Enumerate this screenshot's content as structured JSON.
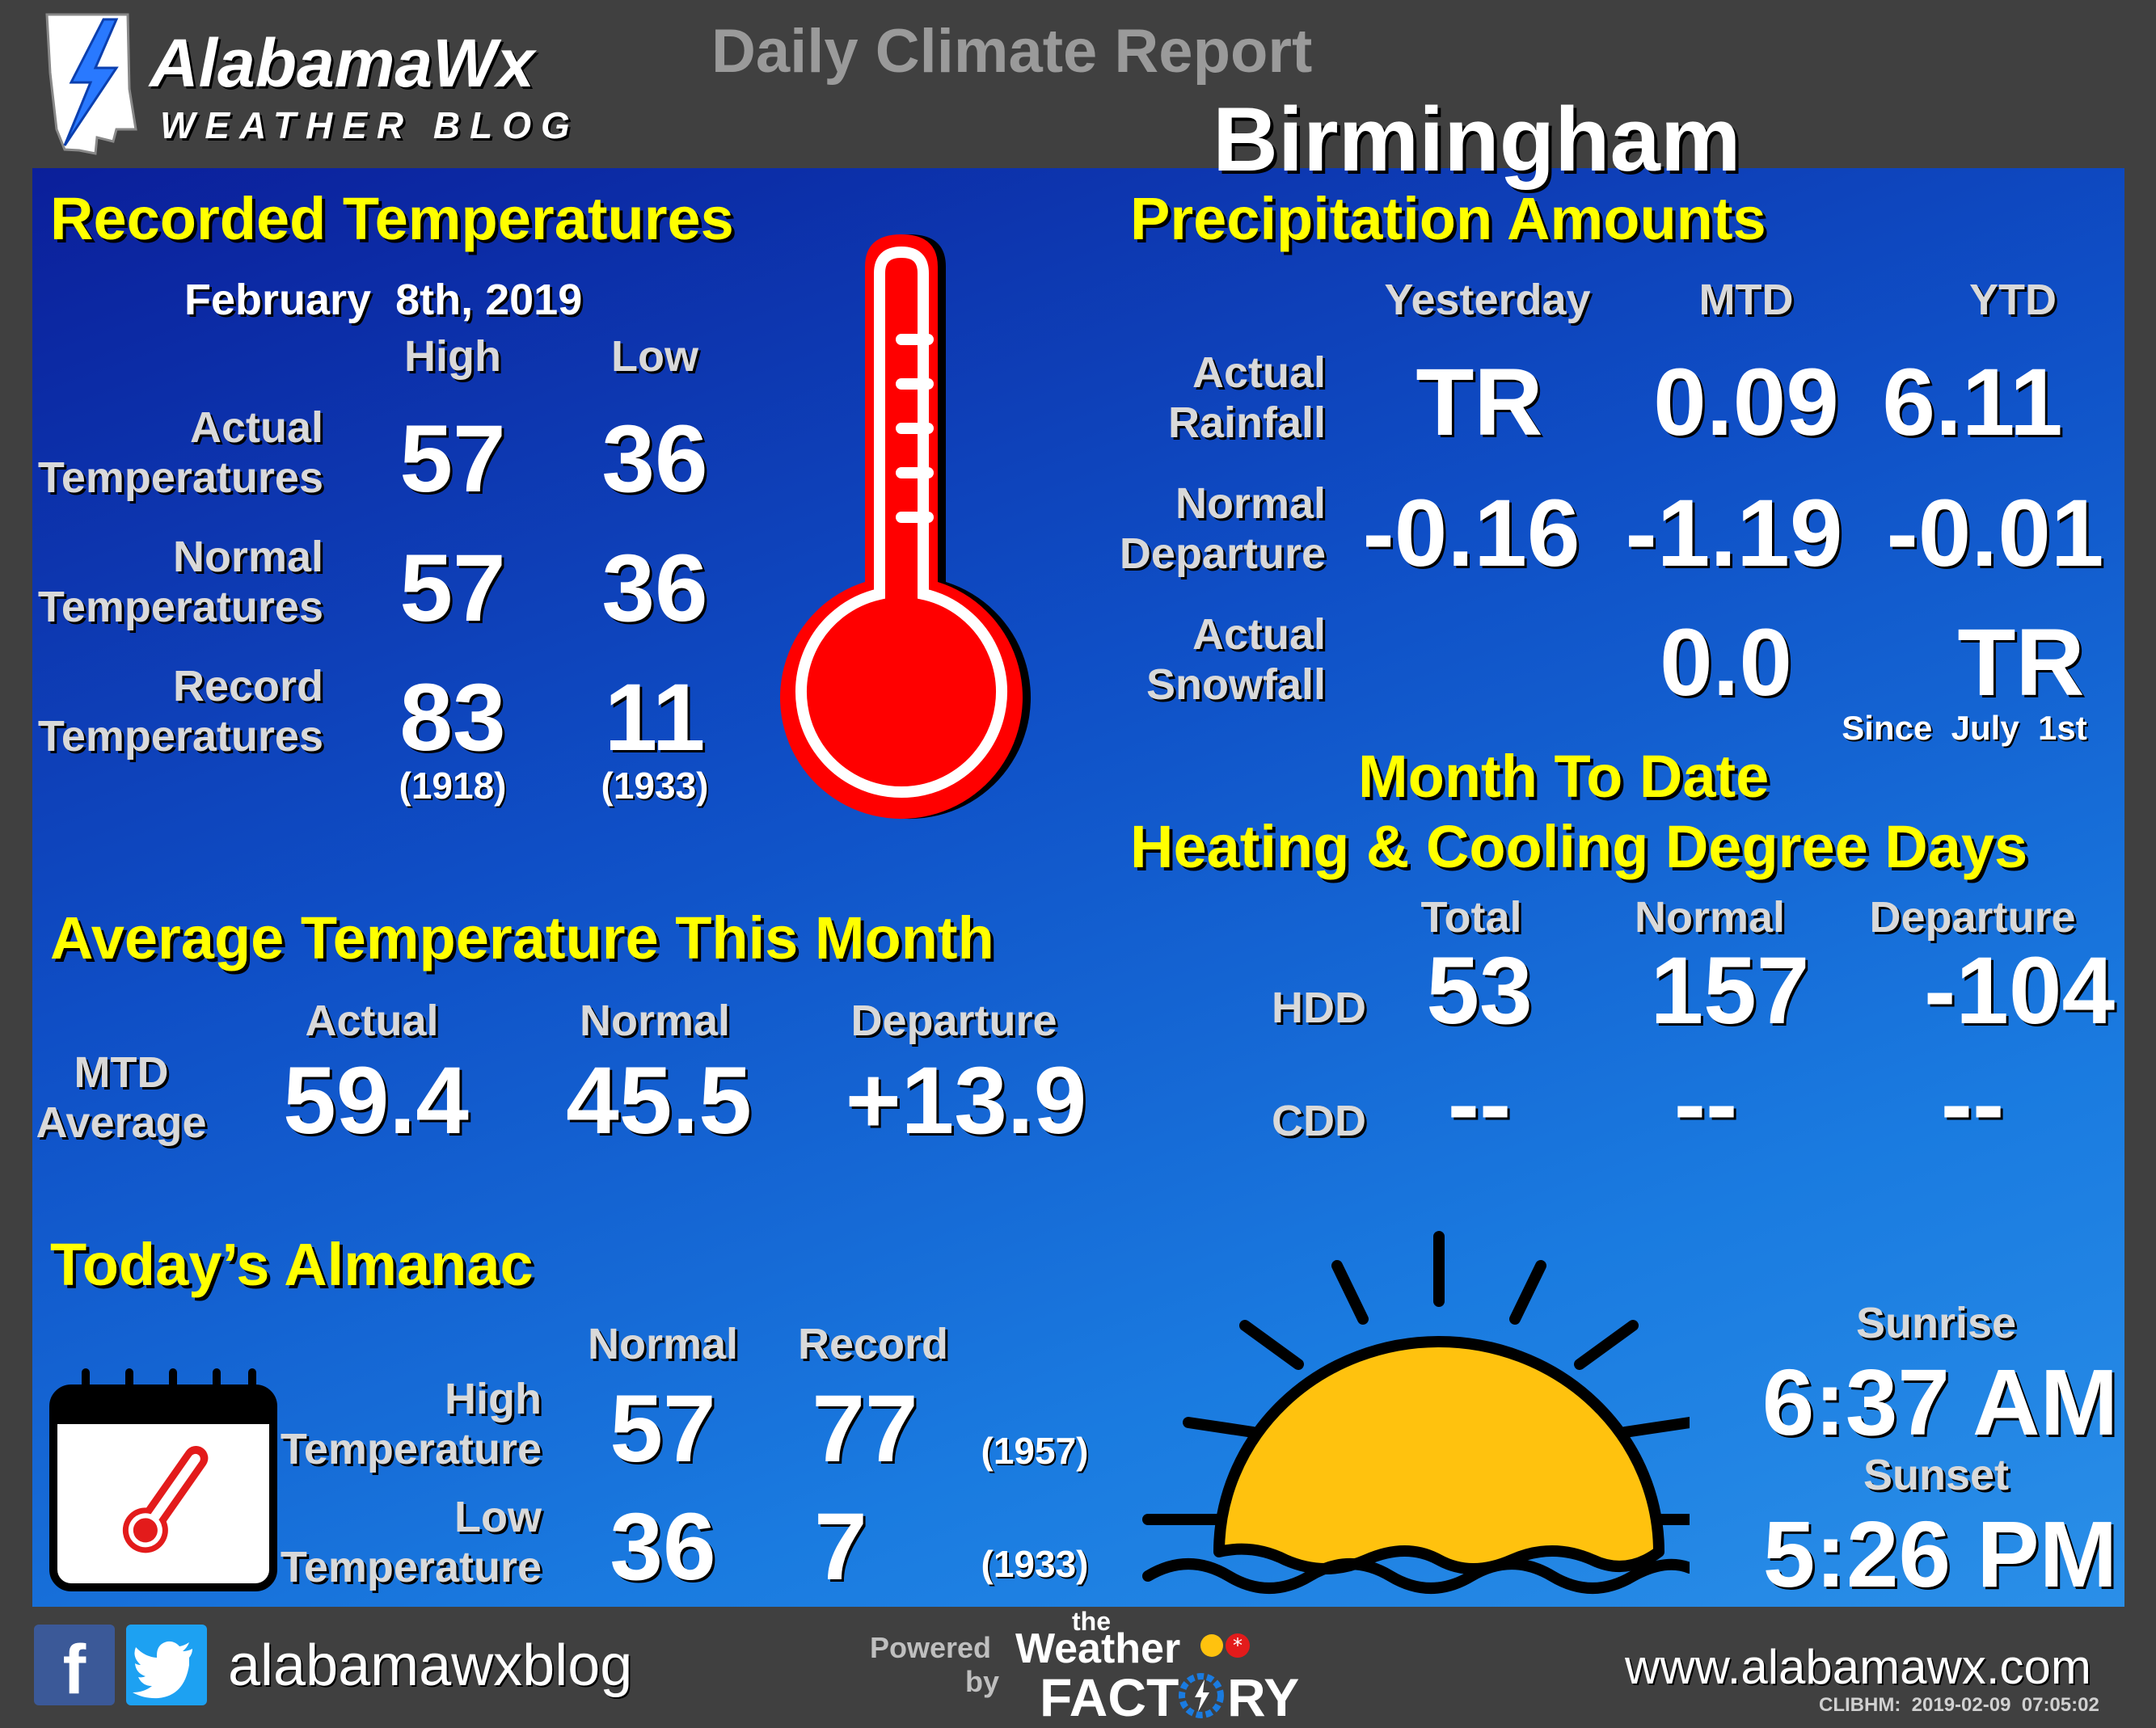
{
  "header": {
    "logo_name": "AlabamaWx",
    "logo_sub": "WEATHER BLOG",
    "report_title": "Daily Climate Report",
    "city": "Birmingham"
  },
  "recorded": {
    "title": "Recorded Temperatures",
    "date": "February  8th, 2019",
    "col_high": "High",
    "col_low": "Low",
    "rows": [
      {
        "label1": "Actual",
        "label2": "Temperatures",
        "high": "57",
        "low": "36"
      },
      {
        "label1": "Normal",
        "label2": "Temperatures",
        "high": "57",
        "low": "36"
      },
      {
        "label1": "Record",
        "label2": "Temperatures",
        "high": "83",
        "low": "11",
        "high_year": "(1918)",
        "low_year": "(1933)"
      }
    ]
  },
  "precip": {
    "title": "Precipitation Amounts",
    "cols": [
      "Yesterday",
      "MTD",
      "YTD"
    ],
    "rainfall": {
      "label1": "Actual",
      "label2": "Rainfall",
      "values": [
        "TR",
        "0.09",
        "6.11"
      ]
    },
    "departure": {
      "label1": "Normal",
      "label2": "Departure",
      "values": [
        "-0.16",
        "-1.19",
        "-0.01"
      ]
    },
    "snowfall": {
      "label1": "Actual",
      "label2": "Snowfall",
      "mtd": "0.0",
      "ytd": "TR",
      "note": "Since  July  1st"
    }
  },
  "degree_days": {
    "title1": "Month To Date",
    "title2": "Heating & Cooling Degree Days",
    "cols": [
      "Total",
      "Normal",
      "Departure"
    ],
    "hdd": {
      "label": "HDD",
      "values": [
        "53",
        "157",
        "-104"
      ]
    },
    "cdd": {
      "label": "CDD",
      "values": [
        "--",
        "--",
        "--"
      ]
    }
  },
  "avg_temp": {
    "title": "Average Temperature This Month",
    "cols": [
      "Actual",
      "Normal",
      "Departure"
    ],
    "label1": "MTD",
    "label2": "Average",
    "values": [
      "59.4",
      "45.5",
      "+13.9"
    ]
  },
  "almanac": {
    "title": "Today’s Almanac",
    "cols": [
      "Normal",
      "Record"
    ],
    "high": {
      "label1": "High",
      "label2": "Temperature",
      "normal": "57",
      "record": "77",
      "year": "(1957)"
    },
    "low": {
      "label1": "Low",
      "label2": "Temperature",
      "normal": "36",
      "record": "7",
      "year": "(1933)"
    }
  },
  "sun": {
    "sunrise_label": "Sunrise",
    "sunrise": "6:37 AM",
    "sunset_label": "Sunset",
    "sunset": "5:26 PM"
  },
  "footer": {
    "social_handle": "alabamawxblog",
    "powered": "Powered",
    "by": "by",
    "wf_the": "the",
    "wf_weather": "Weather",
    "wf_factory_left": "FACT",
    "wf_factory_right": "RY",
    "website": "www.alabamawx.com",
    "code": "CLIBHM:  2019-02-09  07:05:02"
  },
  "colors": {
    "title_yellow": "#ffff00",
    "thermometer_red": "#ff0000",
    "sun_yellow": "#ffc20e",
    "facebook": "#3b5998",
    "twitter": "#1da1f2"
  }
}
